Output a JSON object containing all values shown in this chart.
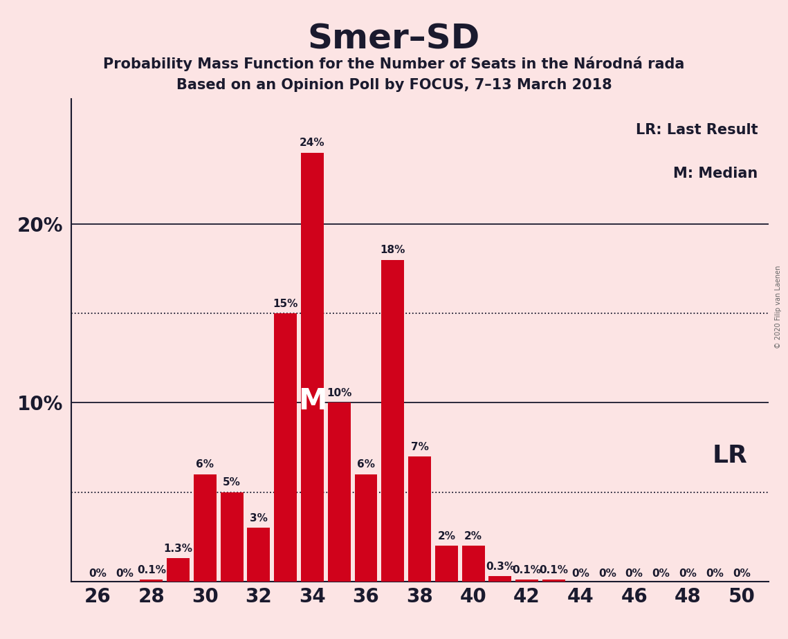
{
  "title": "Smer–SD",
  "subtitle1": "Probability Mass Function for the Number of Seats in the Národná rada",
  "subtitle2": "Based on an Opinion Poll by FOCUS, 7–13 March 2018",
  "background_color": "#fce4e4",
  "bar_color": "#d0021b",
  "seats": [
    26,
    27,
    28,
    29,
    30,
    31,
    32,
    33,
    34,
    35,
    36,
    37,
    38,
    39,
    40,
    41,
    42,
    43,
    44,
    45,
    46,
    47,
    48,
    49,
    50
  ],
  "probabilities": [
    0.0,
    0.0,
    0.1,
    1.3,
    6.0,
    5.0,
    3.0,
    15.0,
    24.0,
    10.0,
    6.0,
    18.0,
    7.0,
    2.0,
    2.0,
    0.3,
    0.1,
    0.1,
    0.0,
    0.0,
    0.0,
    0.0,
    0.0,
    0.0,
    0.0
  ],
  "labels": [
    "0%",
    "0%",
    "0.1%",
    "1.3%",
    "6%",
    "5%",
    "3%",
    "15%",
    "24%",
    "10%",
    "6%",
    "18%",
    "7%",
    "2%",
    "2%",
    "0.3%",
    "0.1%",
    "0.1%",
    "0%",
    "0%",
    "0%",
    "0%",
    "0%",
    "0%",
    "0%"
  ],
  "median_seat": 34,
  "lr_seat": 49,
  "xlim": [
    25.0,
    51.0
  ],
  "ylim": [
    0,
    27
  ],
  "ytick_positions": [
    10,
    20
  ],
  "ytick_labels": [
    "10%",
    "20%"
  ],
  "dotted_lines": [
    5.0,
    15.0
  ],
  "solid_lines": [
    10.0,
    20.0
  ],
  "title_fontsize": 36,
  "subtitle_fontsize": 15,
  "axis_fontsize": 20,
  "label_fontsize": 11,
  "watermark": "© 2020 Filip van Laenen",
  "legend_lr": "LR: Last Result",
  "legend_m": "M: Median",
  "lr_label": "LR",
  "m_label": "M",
  "text_color": "#1a1a2e"
}
